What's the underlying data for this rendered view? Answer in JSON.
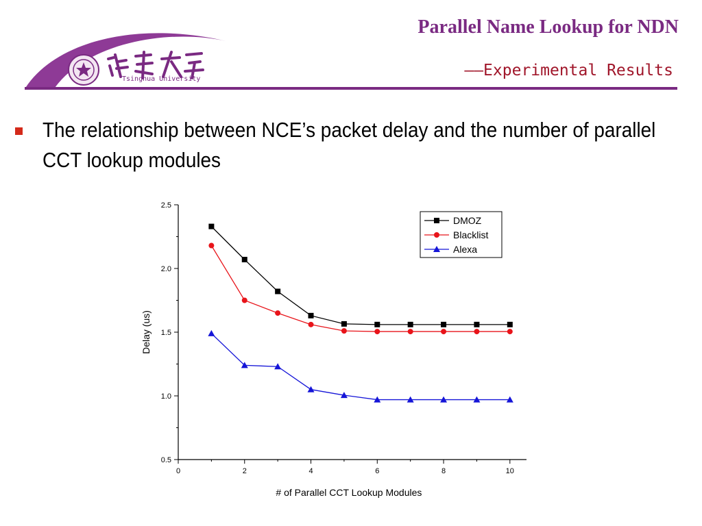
{
  "header": {
    "title": "Parallel Name Lookup for NDN",
    "subtitle": "——Experimental Results",
    "logo_text_en": "Tsinghua University",
    "logo_text_cn": "清華大学",
    "accent_color": "#7a2a82"
  },
  "bullet": {
    "text": "The relationship between NCE’s packet delay and the number of parallel CCT lookup modules",
    "marker_color": "#d42a1a"
  },
  "chart_data": {
    "type": "line",
    "xlabel": "# of Parallel CCT Lookup Modules",
    "ylabel": "Delay (us)",
    "xlim": [
      0,
      10.5
    ],
    "ylim": [
      0.5,
      2.5
    ],
    "x_ticks": [
      "0",
      "2",
      "4",
      "6",
      "8",
      "10"
    ],
    "y_ticks": [
      "0.5",
      "1.0",
      "1.5",
      "2.0",
      "2.5"
    ],
    "legend_position": "top-right",
    "grid": false,
    "x": [
      1,
      2,
      3,
      4,
      5,
      6,
      7,
      8,
      9,
      10
    ],
    "series": [
      {
        "name": "DMOZ",
        "color": "#000000",
        "marker": "square",
        "values": [
          2.33,
          2.07,
          1.82,
          1.63,
          1.565,
          1.56,
          1.56,
          1.56,
          1.56,
          1.56
        ]
      },
      {
        "name": "Blacklist",
        "color": "#e8141a",
        "marker": "circle",
        "values": [
          2.18,
          1.75,
          1.65,
          1.56,
          1.51,
          1.505,
          1.505,
          1.505,
          1.505,
          1.505
        ]
      },
      {
        "name": "Alexa",
        "color": "#1515d8",
        "marker": "triangle",
        "values": [
          1.49,
          1.24,
          1.23,
          1.05,
          1.005,
          0.97,
          0.97,
          0.97,
          0.97,
          0.97
        ]
      }
    ]
  }
}
